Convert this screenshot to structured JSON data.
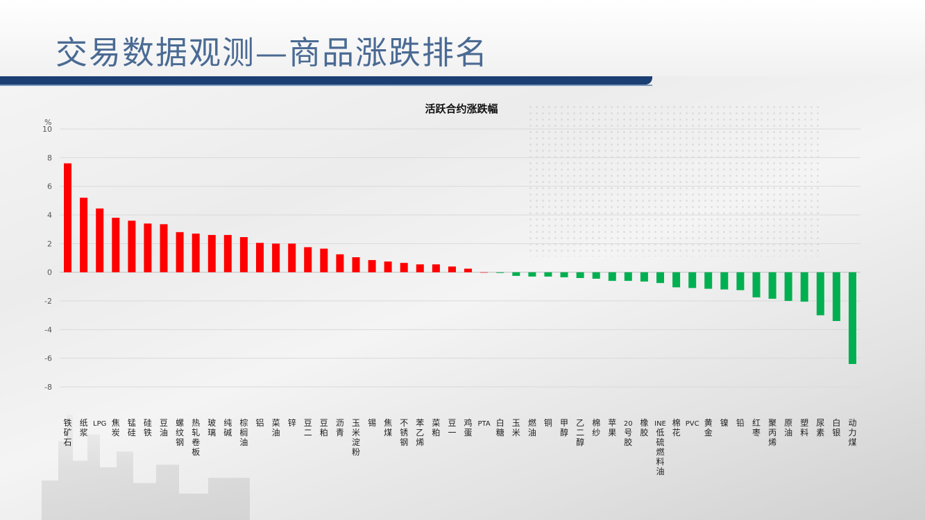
{
  "page": {
    "title": "交易数据观测—商品涨跌排名"
  },
  "colors": {
    "up": "#ff0000",
    "down": "#00b050",
    "title": "#4a6a93",
    "rule": "#1c3f73",
    "grid": "#d9d9d9"
  },
  "chart_data": {
    "type": "bar",
    "title": "活跃合约涨跌幅",
    "ylabel": "%",
    "xlabel": "",
    "ylim": [
      -8,
      10
    ],
    "yticks": [
      10,
      8,
      6,
      4,
      2,
      0,
      -2,
      -4,
      -6,
      -8
    ],
    "grid": true,
    "legend": "none",
    "categories": [
      "铁矿石",
      "纸浆",
      "LPG",
      "焦炭",
      "锰硅",
      "硅铁",
      "豆油",
      "螺纹钢",
      "热轧卷板",
      "玻璃",
      "纯碱",
      "棕榈油",
      "铝",
      "菜油",
      "锌",
      "豆二",
      "豆粕",
      "沥青",
      "玉米淀粉",
      "锡",
      "焦煤",
      "不锈钢",
      "苯乙烯",
      "菜粕",
      "豆一",
      "鸡蛋",
      "PTA",
      "白糖",
      "玉米",
      "燃油",
      "铜",
      "甲醇",
      "乙二醇",
      "棉纱",
      "苹果",
      "20号胶",
      "橡胶",
      "INE低硫燃料油",
      "棉花",
      "PVC",
      "黄金",
      "镍",
      "铅",
      "红枣",
      "聚丙烯",
      "原油",
      "塑料",
      "尿素",
      "白银",
      "动力煤"
    ],
    "values": [
      7.6,
      5.2,
      4.45,
      3.8,
      3.6,
      3.4,
      3.35,
      2.8,
      2.7,
      2.6,
      2.6,
      2.45,
      2.05,
      2.0,
      2.0,
      1.75,
      1.65,
      1.25,
      1.05,
      0.85,
      0.75,
      0.65,
      0.55,
      0.55,
      0.4,
      0.25,
      0.0,
      -0.05,
      -0.25,
      -0.3,
      -0.3,
      -0.35,
      -0.4,
      -0.45,
      -0.6,
      -0.6,
      -0.65,
      -0.75,
      -1.05,
      -1.1,
      -1.15,
      -1.2,
      -1.25,
      -1.75,
      -1.85,
      -2.0,
      -2.05,
      -3.0,
      -3.4,
      -6.4
    ]
  }
}
